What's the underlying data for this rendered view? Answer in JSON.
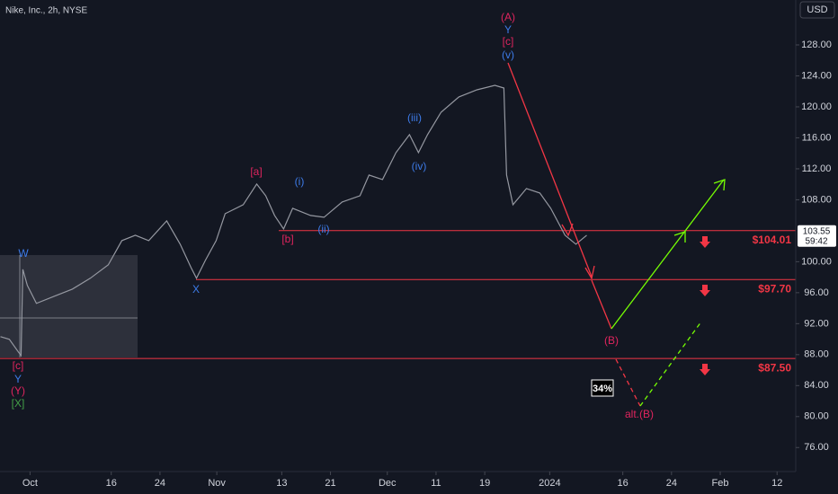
{
  "chart_data": {
    "type": "line",
    "title": "Nike, Inc., 2h, NYSE",
    "currency": "USD",
    "x": [
      -3.65,
      -2.55,
      -1.44,
      -1.11,
      -0.89,
      -0.33,
      0.78,
      2.99,
      5.2,
      7.42,
      9.63,
      11.3,
      12.96,
      14.62,
      16.83,
      18.49,
      19.82,
      20.49,
      21.59,
      22.92,
      24.03,
      26.25,
      27.91,
      29.02,
      30.12,
      31.23,
      32.34,
      34.55,
      36.21,
      38.43,
      40.64,
      41.75,
      43.41,
      45.07,
      46.73,
      47.84,
      48.95,
      50.61,
      52.82,
      55.04,
      57.25,
      58.36,
      58.69,
      59.47,
      61.13,
      62.79,
      64.12,
      65.89,
      67.22,
      68.55
    ],
    "values": [
      90.32,
      89.97,
      88.35,
      87.88,
      99.01,
      96.93,
      94.61,
      95.54,
      96.46,
      97.86,
      99.59,
      102.72,
      103.42,
      102.72,
      105.28,
      102.26,
      99.25,
      97.86,
      100.17,
      102.72,
      106.2,
      107.36,
      110.03,
      108.52,
      105.97,
      104.23,
      106.9,
      105.97,
      105.74,
      107.71,
      108.52,
      111.19,
      110.61,
      114.09,
      116.41,
      114.09,
      116.41,
      119.3,
      121.28,
      122.2,
      122.78,
      122.43,
      111.19,
      107.36,
      109.45,
      108.87,
      106.9,
      103.42,
      102.26,
      103.42
    ],
    "color": "#9598a1",
    "xlim": [
      -3.7,
      94.3
    ],
    "xticks": [
      {
        "value": 0,
        "label": "Oct"
      },
      {
        "value": 10,
        "label": "16"
      },
      {
        "value": 16,
        "label": "24"
      },
      {
        "value": 23,
        "label": "Nov"
      },
      {
        "value": 31,
        "label": "13"
      },
      {
        "value": 37,
        "label": "21"
      },
      {
        "value": 44,
        "label": "Dec"
      },
      {
        "value": 50,
        "label": "11"
      },
      {
        "value": 56,
        "label": "19"
      },
      {
        "value": 64,
        "label": "2024"
      },
      {
        "value": 73,
        "label": "16"
      },
      {
        "value": 79,
        "label": "24"
      },
      {
        "value": 85,
        "label": "Feb"
      },
      {
        "value": 92,
        "label": "12"
      }
    ],
    "ylim": [
      72.9,
      133.8
    ],
    "yticks": [
      {
        "value": 128,
        "label": "128.00"
      },
      {
        "value": 124,
        "label": "124.00"
      },
      {
        "value": 120,
        "label": "120.00"
      },
      {
        "value": 116,
        "label": "116.00"
      },
      {
        "value": 112,
        "label": "112.00"
      },
      {
        "value": 108,
        "label": "108.00"
      },
      {
        "value": 100,
        "label": "100.00"
      },
      {
        "value": 96,
        "label": "96.00"
      },
      {
        "value": 92,
        "label": "92.00"
      },
      {
        "value": 88,
        "label": "88.00"
      },
      {
        "value": 84,
        "label": "84.00"
      },
      {
        "value": 80,
        "label": "80.00"
      },
      {
        "value": 76,
        "label": "76.00"
      }
    ],
    "grid": false,
    "last_price": 103.55,
    "countdown": "59:42",
    "levels": {
      "values": [
        104.01,
        97.7,
        87.5
      ],
      "value_labels": [
        "$104.01",
        "$97.70",
        "$87.50"
      ],
      "color": "#f23645"
    },
    "annotations": [
      "(A)",
      "Y",
      "[c]",
      "(v)",
      "(iii)",
      "(iv)",
      "(i)",
      "[a]",
      "[b]",
      "(ii)",
      "X",
      "W",
      "[c]",
      "Y",
      "(Y)",
      "[X]",
      "(B)",
      "alt.(B)",
      "34%"
    ]
  }
}
